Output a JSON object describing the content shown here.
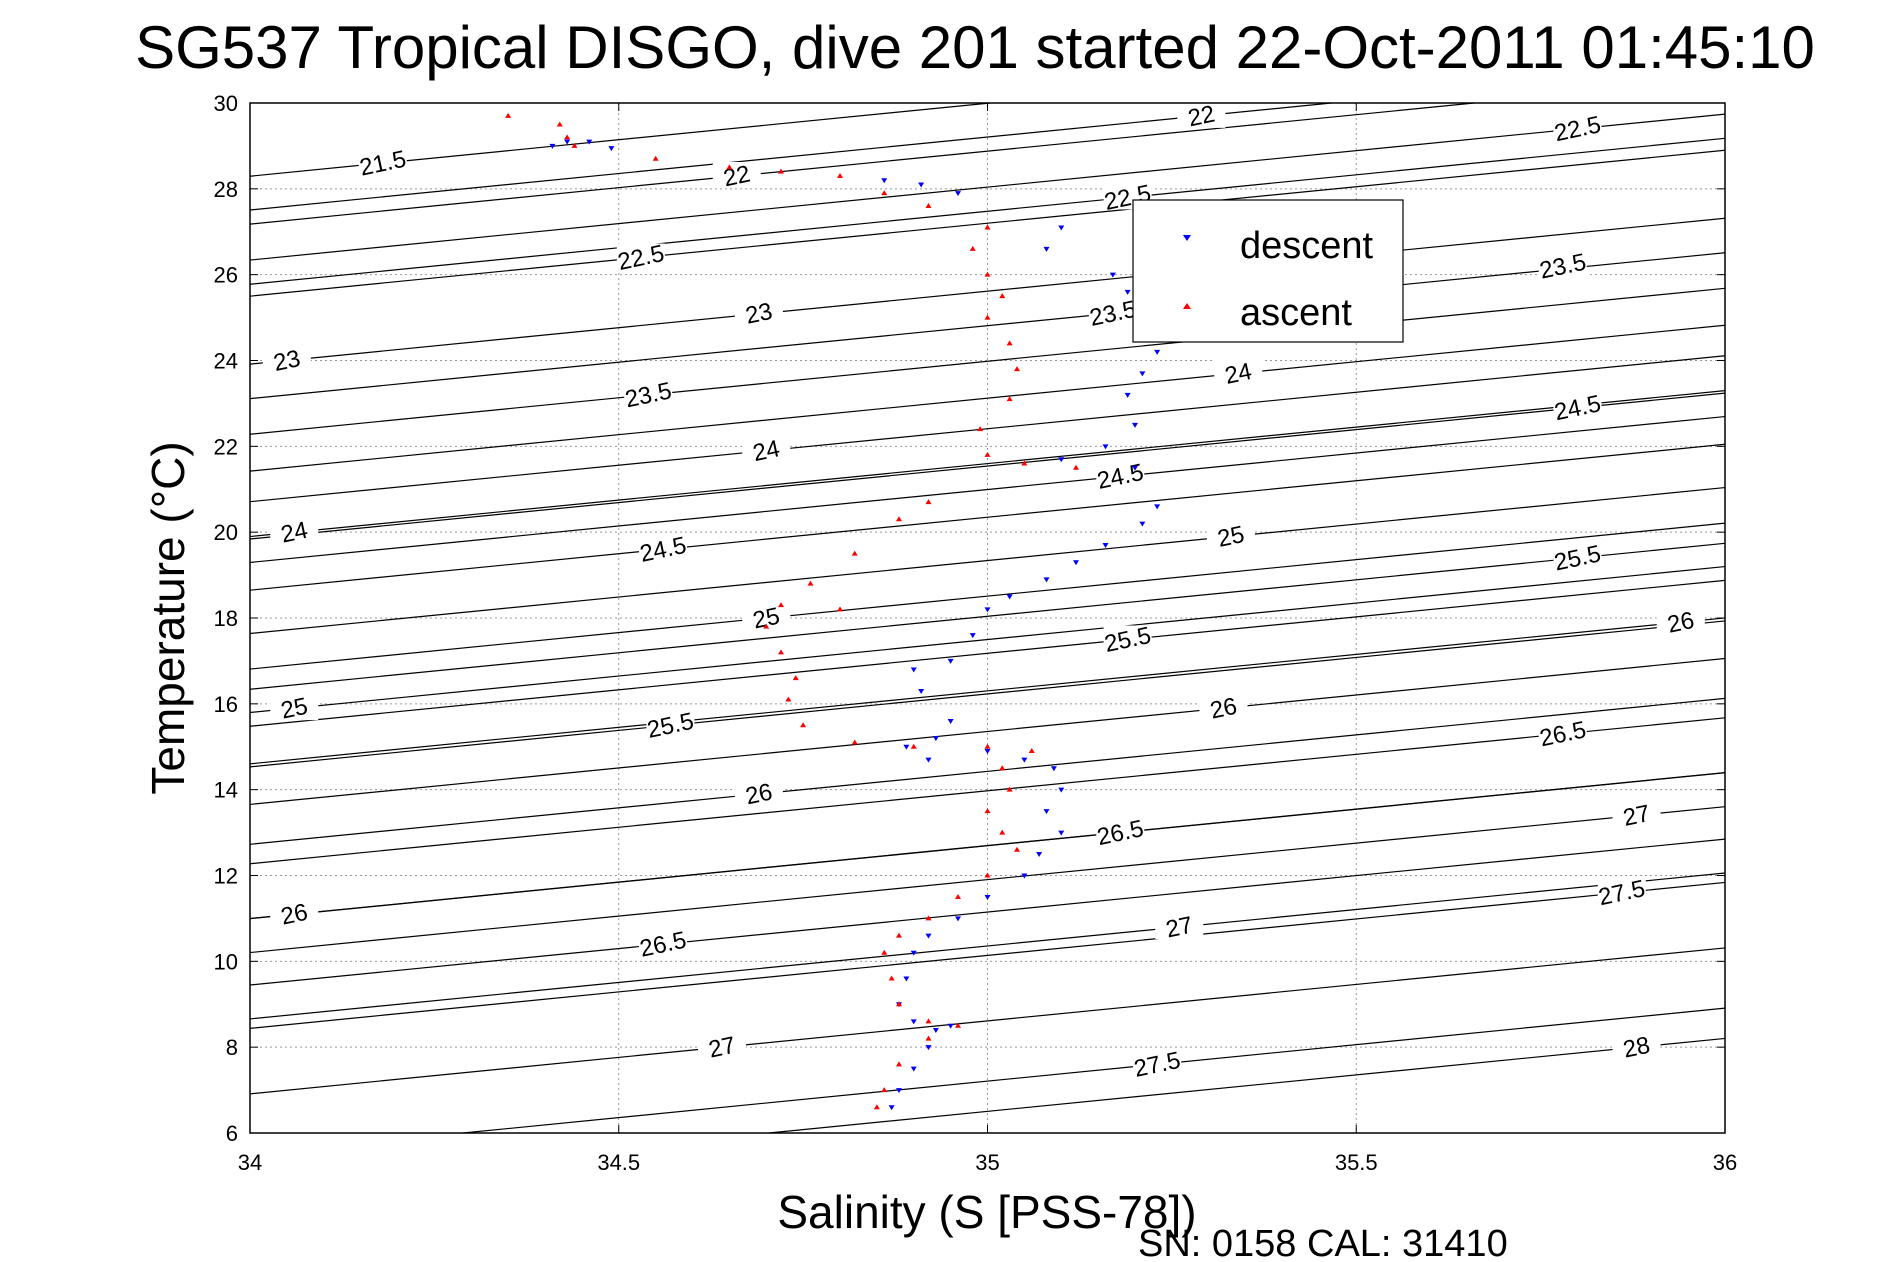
{
  "chart_data": {
    "type": "scatter",
    "title": "SG537 Tropical DISGO, dive 201 started 22-Oct-2011 01:45:10",
    "xlabel": "Salinity (S [PSS-78])",
    "ylabel": "Temperature (°C)",
    "xlim": [
      34,
      36
    ],
    "ylim": [
      6,
      30
    ],
    "xticks": [
      "34",
      "34.5",
      "35",
      "35.5",
      "36"
    ],
    "yticks": [
      "6",
      "8",
      "10",
      "12",
      "14",
      "16",
      "18",
      "20",
      "22",
      "24",
      "26",
      "28",
      "30"
    ],
    "grid": true,
    "legend_position": "top-right",
    "footer": "SN: 0158  CAL: 31410",
    "series": [
      {
        "name": "descent",
        "color": "#0000ff",
        "marker": "triangle-down",
        "points": [
          [
            34.43,
            29.1
          ],
          [
            34.46,
            29.1
          ],
          [
            34.49,
            28.95
          ],
          [
            34.41,
            29.0
          ],
          [
            34.86,
            28.2
          ],
          [
            34.91,
            28.1
          ],
          [
            34.96,
            27.9
          ],
          [
            35.1,
            27.1
          ],
          [
            35.08,
            26.6
          ],
          [
            35.17,
            26.0
          ],
          [
            35.19,
            25.6
          ],
          [
            35.2,
            25.1
          ],
          [
            35.23,
            24.2
          ],
          [
            35.21,
            23.7
          ],
          [
            35.19,
            23.2
          ],
          [
            35.2,
            22.5
          ],
          [
            35.16,
            22.0
          ],
          [
            35.1,
            21.7
          ],
          [
            35.2,
            21.5
          ],
          [
            35.23,
            20.6
          ],
          [
            35.21,
            20.2
          ],
          [
            35.16,
            19.7
          ],
          [
            35.12,
            19.3
          ],
          [
            35.08,
            18.9
          ],
          [
            35.03,
            18.5
          ],
          [
            35.0,
            18.2
          ],
          [
            34.98,
            17.6
          ],
          [
            34.95,
            17.0
          ],
          [
            34.9,
            16.8
          ],
          [
            34.91,
            16.3
          ],
          [
            34.95,
            15.6
          ],
          [
            34.93,
            15.2
          ],
          [
            34.89,
            15.0
          ],
          [
            34.92,
            14.7
          ],
          [
            35.0,
            14.9
          ],
          [
            35.05,
            14.7
          ],
          [
            35.09,
            14.5
          ],
          [
            35.1,
            14.0
          ],
          [
            35.08,
            13.5
          ],
          [
            35.1,
            13.0
          ],
          [
            35.07,
            12.5
          ],
          [
            35.05,
            12.0
          ],
          [
            35.0,
            11.5
          ],
          [
            34.96,
            11.0
          ],
          [
            34.92,
            10.6
          ],
          [
            34.9,
            10.2
          ],
          [
            34.89,
            9.6
          ],
          [
            34.88,
            9.0
          ],
          [
            34.9,
            8.6
          ],
          [
            34.93,
            8.4
          ],
          [
            34.95,
            8.5
          ],
          [
            34.92,
            8.0
          ],
          [
            34.9,
            7.5
          ],
          [
            34.88,
            7.0
          ],
          [
            34.87,
            6.6
          ]
        ]
      },
      {
        "name": "ascent",
        "color": "#ff0000",
        "marker": "triangle-up",
        "points": [
          [
            34.35,
            29.7
          ],
          [
            34.42,
            29.5
          ],
          [
            34.44,
            29.0
          ],
          [
            34.43,
            29.2
          ],
          [
            34.55,
            28.7
          ],
          [
            34.65,
            28.5
          ],
          [
            34.72,
            28.4
          ],
          [
            34.8,
            28.3
          ],
          [
            34.86,
            27.9
          ],
          [
            34.92,
            27.6
          ],
          [
            35.0,
            27.1
          ],
          [
            34.98,
            26.6
          ],
          [
            35.0,
            26.0
          ],
          [
            35.02,
            25.5
          ],
          [
            35.0,
            25.0
          ],
          [
            35.03,
            24.4
          ],
          [
            35.04,
            23.8
          ],
          [
            35.03,
            23.1
          ],
          [
            34.99,
            22.4
          ],
          [
            35.0,
            21.8
          ],
          [
            35.05,
            21.6
          ],
          [
            35.12,
            21.5
          ],
          [
            34.92,
            20.7
          ],
          [
            34.88,
            20.3
          ],
          [
            34.82,
            19.5
          ],
          [
            34.76,
            18.8
          ],
          [
            34.72,
            18.3
          ],
          [
            34.8,
            18.2
          ],
          [
            34.7,
            17.8
          ],
          [
            34.72,
            17.2
          ],
          [
            34.74,
            16.6
          ],
          [
            34.73,
            16.1
          ],
          [
            34.75,
            15.5
          ],
          [
            34.82,
            15.1
          ],
          [
            34.9,
            15.0
          ],
          [
            35.0,
            15.0
          ],
          [
            35.06,
            14.9
          ],
          [
            35.02,
            14.5
          ],
          [
            35.03,
            14.0
          ],
          [
            35.0,
            13.5
          ],
          [
            35.02,
            13.0
          ],
          [
            35.04,
            12.6
          ],
          [
            35.0,
            12.0
          ],
          [
            34.96,
            11.5
          ],
          [
            34.92,
            11.0
          ],
          [
            34.88,
            10.6
          ],
          [
            34.86,
            10.2
          ],
          [
            34.87,
            9.6
          ],
          [
            34.88,
            9.0
          ],
          [
            34.92,
            8.6
          ],
          [
            34.96,
            8.5
          ],
          [
            34.92,
            8.2
          ],
          [
            34.88,
            7.6
          ],
          [
            34.86,
            7.0
          ],
          [
            34.85,
            6.6
          ]
        ]
      }
    ],
    "contours": [
      {
        "label": "21.5",
        "label_at": [
          34.18,
          28.6
        ]
      },
      {
        "label": "22",
        "label_at": [
          34.66,
          28.3
        ]
      },
      {
        "label": "22",
        "label_at": [
          35.29,
          29.7
        ]
      },
      {
        "label": "22.5",
        "label_at": [
          34.53,
          26.4
        ]
      },
      {
        "label": "22.5",
        "label_at": [
          35.19,
          27.8
        ]
      },
      {
        "label": "22.5",
        "label_at": [
          35.8,
          29.4
        ]
      },
      {
        "label": "23",
        "label_at": [
          34.05,
          24.0
        ]
      },
      {
        "label": "23",
        "label_at": [
          34.69,
          25.1
        ]
      },
      {
        "label": "23.5",
        "label_at": [
          35.17,
          25.1
        ]
      },
      {
        "label": "23.5",
        "label_at": [
          35.78,
          26.2
        ]
      },
      {
        "label": "23.5",
        "label_at": [
          34.54,
          23.2
        ]
      },
      {
        "label": "24",
        "label_at": [
          35.34,
          23.7
        ]
      },
      {
        "label": "24",
        "label_at": [
          34.7,
          21.9
        ]
      },
      {
        "label": "24",
        "label_at": [
          34.06,
          20.0
        ]
      },
      {
        "label": "24.5",
        "label_at": [
          35.8,
          22.9
        ]
      },
      {
        "label": "24.5",
        "label_at": [
          35.18,
          21.3
        ]
      },
      {
        "label": "24.5",
        "label_at": [
          34.56,
          19.6
        ]
      },
      {
        "label": "25",
        "label_at": [
          35.33,
          19.9
        ]
      },
      {
        "label": "25",
        "label_at": [
          34.7,
          18.0
        ]
      },
      {
        "label": "25",
        "label_at": [
          34.06,
          15.9
        ]
      },
      {
        "label": "25.5",
        "label_at": [
          35.8,
          19.4
        ]
      },
      {
        "label": "25.5",
        "label_at": [
          35.19,
          17.5
        ]
      },
      {
        "label": "25.5",
        "label_at": [
          34.57,
          15.5
        ]
      },
      {
        "label": "26",
        "label_at": [
          35.94,
          17.9
        ]
      },
      {
        "label": "26",
        "label_at": [
          35.32,
          15.9
        ]
      },
      {
        "label": "26",
        "label_at": [
          34.69,
          13.9
        ]
      },
      {
        "label": "26",
        "label_at": [
          34.06,
          11.1
        ]
      },
      {
        "label": "26.5",
        "label_at": [
          35.78,
          15.3
        ]
      },
      {
        "label": "26.5",
        "label_at": [
          35.18,
          13.0
        ]
      },
      {
        "label": "26.5",
        "label_at": [
          34.56,
          10.4
        ]
      },
      {
        "label": "27",
        "label_at": [
          35.88,
          13.4
        ]
      },
      {
        "label": "27",
        "label_at": [
          35.26,
          10.8
        ]
      },
      {
        "label": "27",
        "label_at": [
          34.64,
          8.0
        ]
      },
      {
        "label": "27.5",
        "label_at": [
          35.86,
          11.6
        ]
      },
      {
        "label": "27.5",
        "label_at": [
          35.23,
          7.6
        ]
      },
      {
        "label": "28",
        "label_at": [
          35.88,
          8.0
        ]
      }
    ]
  }
}
